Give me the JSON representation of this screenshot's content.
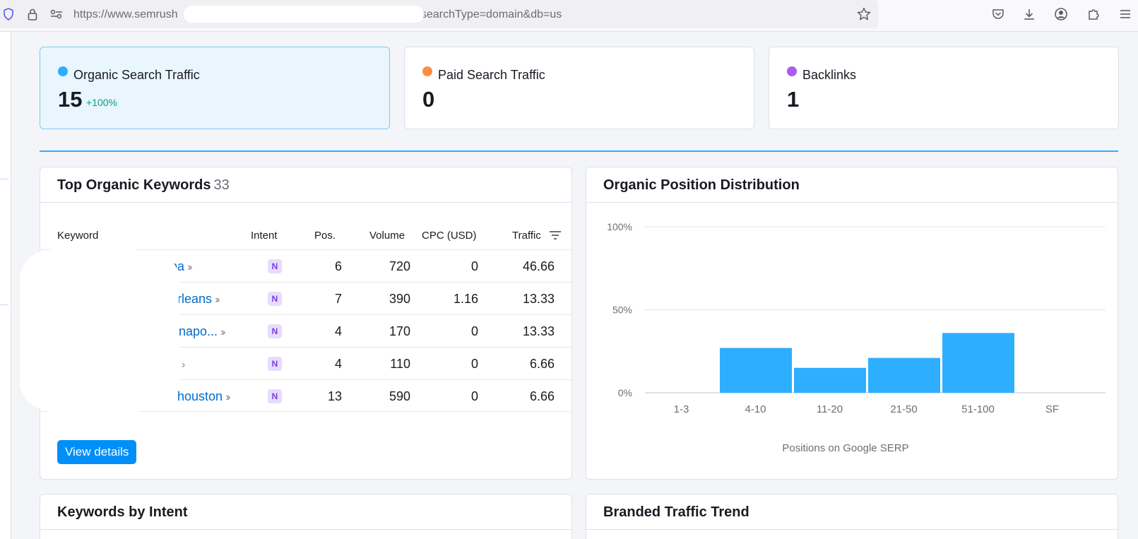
{
  "browser": {
    "url_prefix": "https://www.semrush",
    "url_suffix": "searchType=domain&db=us"
  },
  "summary": {
    "cards": [
      {
        "label": "Organic Search Traffic",
        "value": "15",
        "change": "+100%",
        "dot_color": "#2eaeff"
      },
      {
        "label": "Paid Search Traffic",
        "value": "0",
        "dot_color": "#ff8c43"
      },
      {
        "label": "Backlinks",
        "value": "1",
        "dot_color": "#a75cf2"
      }
    ]
  },
  "keywords_widget": {
    "title": "Top Organic Keywords",
    "count": "33",
    "columns": [
      "Keyword",
      "Intent",
      "Pos.",
      "Volume",
      "CPC (USD)",
      "Traffic"
    ],
    "rows": [
      {
        "keyword": "pa",
        "intent": "N",
        "pos": "6",
        "volume": "720",
        "cpc": "0",
        "traffic": "46.66"
      },
      {
        "keyword": "orleans",
        "intent": "N",
        "pos": "7",
        "volume": "390",
        "cpc": "1.16",
        "traffic": "13.33"
      },
      {
        "keyword": "napo...",
        "intent": "N",
        "pos": "4",
        "volume": "170",
        "cpc": "0",
        "traffic": "13.33"
      },
      {
        "keyword": "",
        "intent": "N",
        "pos": "4",
        "volume": "110",
        "cpc": "0",
        "traffic": "6.66"
      },
      {
        "keyword": "houston",
        "intent": "N",
        "pos": "13",
        "volume": "590",
        "cpc": "0",
        "traffic": "6.66"
      }
    ],
    "view_details": "View details"
  },
  "position_widget": {
    "title": "Organic Position Distribution"
  },
  "chart_data": {
    "type": "bar",
    "categories": [
      "1-3",
      "4-10",
      "11-20",
      "21-50",
      "51-100",
      "SF"
    ],
    "values": [
      0,
      27,
      15,
      21,
      36,
      0
    ],
    "ylim": [
      0,
      100
    ],
    "yticks": [
      "0%",
      "50%",
      "100%"
    ],
    "xlabel": "Positions on Google SERP",
    "bar_color": "#2eaeff",
    "grid": true
  },
  "intent_widget": {
    "title": "Keywords by Intent"
  },
  "branded_widget": {
    "title": "Branded Traffic Trend"
  }
}
